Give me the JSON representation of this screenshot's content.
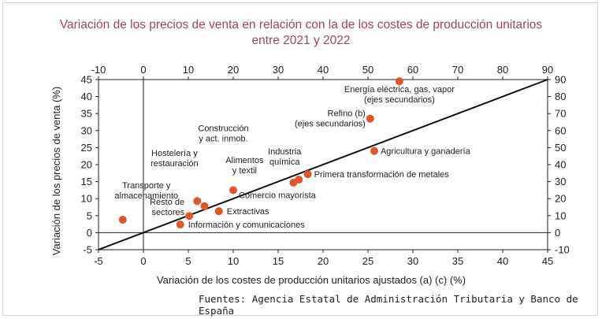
{
  "chart_data": {
    "type": "scatter",
    "title": "Variación de los precios de venta en relación con la de los costes de producción unitarios\nentre 2021 y 2022",
    "xlabel": "Variación de los costes de producción unitarios ajustados (a) (c) (%)",
    "ylabel": "Variación de los precios de venta (%)",
    "xlim": [
      -5,
      45
    ],
    "ylim": [
      -5,
      45
    ],
    "secondary_xlim": [
      -10,
      90
    ],
    "secondary_ylim": [
      -10,
      90
    ],
    "x_ticks": [
      "-5",
      "0",
      "5",
      "10",
      "15",
      "20",
      "25",
      "30",
      "35",
      "40",
      "45"
    ],
    "y_ticks": [
      "45",
      "40",
      "35",
      "30",
      "25",
      "20",
      "15",
      "10",
      "5",
      "0",
      "-5"
    ],
    "x2_ticks": [
      "-10",
      "0",
      "10",
      "20",
      "30",
      "40",
      "50",
      "60",
      "70",
      "80",
      "90"
    ],
    "y2_ticks": [
      "90",
      "80",
      "70",
      "60",
      "50",
      "40",
      "30",
      "20",
      "10",
      "0",
      "-10"
    ],
    "grid": false,
    "marker_color": "#e0552a",
    "line_color": "#111111",
    "reference_line": {
      "x": [
        -5,
        45
      ],
      "y": [
        -5,
        45
      ]
    },
    "points": [
      {
        "label": "Energía eléctrica, gas, vapor\n(ejes secundarios)",
        "x": 57,
        "y": 89,
        "axes": "secondary"
      },
      {
        "label": "Refino (b)\n(ejes secundarios)",
        "x": 50.5,
        "y": 67,
        "axes": "secondary"
      },
      {
        "label": "Agricultura y ganadería",
        "x": 25.7,
        "y": 24.0,
        "axes": "primary"
      },
      {
        "label": "Primera transformación de metales",
        "x": 18.3,
        "y": 17.2,
        "axes": "primary"
      },
      {
        "label": "Industria\nquímica",
        "x": 17.3,
        "y": 15.6,
        "axes": "primary"
      },
      {
        "label": "Alimentos\ny textil",
        "x": 16.7,
        "y": 14.7,
        "axes": "primary"
      },
      {
        "label": "Comercio mayorista",
        "x": 10.0,
        "y": 12.5,
        "axes": "primary"
      },
      {
        "label": "Construcción\ny act. inmob.",
        "x": 6.8,
        "y": 7.8,
        "axes": "primary"
      },
      {
        "label": "Hostelería y\nrestauración",
        "x": 6.0,
        "y": 9.3,
        "axes": "primary"
      },
      {
        "label": "Extractivas",
        "x": 8.4,
        "y": 6.3,
        "axes": "primary"
      },
      {
        "label": "Resto de\nsectores",
        "x": 5.1,
        "y": 4.9,
        "axes": "primary"
      },
      {
        "label": "Transporte y\nalmacenamiento",
        "x": -2.3,
        "y": 3.8,
        "axes": "primary"
      },
      {
        "label": "Información y comunicaciones",
        "x": 4.1,
        "y": 2.4,
        "axes": "primary"
      }
    ]
  },
  "source": "Fuentes: Agencia Estatal de Administración Tributaria y Banco de España"
}
